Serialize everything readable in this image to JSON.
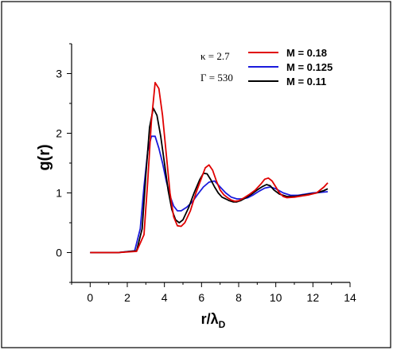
{
  "chart_data": {
    "type": "line",
    "title": "",
    "xlabel": "r/λ",
    "xlabel_main": "r/λ",
    "xlabel_sub": "D",
    "ylabel": "g(r)",
    "xlim": [
      -1,
      14
    ],
    "ylim": [
      -0.5,
      3.5
    ],
    "xticks": [
      0,
      2,
      4,
      6,
      8,
      10,
      12,
      14
    ],
    "yticks": [
      0,
      1,
      2,
      3
    ],
    "grid": false,
    "legend_position": "top-right",
    "annotations": [
      "κ = 2.7",
      "Γ = 530"
    ],
    "colors": {
      "M018": "#e00000",
      "M0125": "#1a1adc",
      "M011": "#000000",
      "frame": "#000000"
    },
    "series": [
      {
        "name": "M = 0.18",
        "color": "#e00000",
        "x": [
          0,
          1.5,
          2.5,
          2.9,
          3.1,
          3.3,
          3.5,
          3.7,
          3.9,
          4.1,
          4.3,
          4.5,
          4.7,
          4.9,
          5.1,
          5.4,
          5.7,
          6.0,
          6.2,
          6.4,
          6.6,
          6.8,
          7.0,
          7.2,
          7.4,
          7.6,
          7.8,
          8.0,
          8.3,
          8.6,
          8.9,
          9.2,
          9.4,
          9.6,
          9.8,
          10.0,
          10.2,
          10.4,
          10.6,
          11.0,
          11.4,
          11.8,
          12.2,
          12.6,
          12.8
        ],
        "y": [
          0,
          0,
          0.02,
          0.3,
          1.2,
          2.2,
          2.85,
          2.75,
          2.3,
          1.65,
          1.0,
          0.6,
          0.45,
          0.44,
          0.5,
          0.7,
          1.0,
          1.25,
          1.42,
          1.47,
          1.38,
          1.2,
          1.05,
          0.97,
          0.92,
          0.88,
          0.86,
          0.87,
          0.92,
          0.98,
          1.05,
          1.15,
          1.23,
          1.25,
          1.2,
          1.1,
          1.0,
          0.94,
          0.92,
          0.93,
          0.95,
          0.97,
          1.0,
          1.1,
          1.17
        ]
      },
      {
        "name": "M = 0.125",
        "color": "#1a1adc",
        "x": [
          0,
          1.5,
          2.4,
          2.7,
          2.9,
          3.1,
          3.3,
          3.5,
          3.7,
          3.9,
          4.1,
          4.3,
          4.5,
          4.7,
          4.9,
          5.2,
          5.5,
          5.8,
          6.1,
          6.4,
          6.7,
          7.0,
          7.3,
          7.6,
          7.9,
          8.2,
          8.5,
          8.8,
          9.1,
          9.4,
          9.7,
          10.0,
          10.4,
          10.8,
          11.2,
          11.6,
          12.0,
          12.4,
          12.8
        ],
        "y": [
          0,
          0,
          0.03,
          0.4,
          1.1,
          1.7,
          1.95,
          1.95,
          1.75,
          1.5,
          1.2,
          0.95,
          0.78,
          0.7,
          0.7,
          0.76,
          0.85,
          0.98,
          1.1,
          1.18,
          1.2,
          1.1,
          1.0,
          0.93,
          0.9,
          0.9,
          0.92,
          0.97,
          1.03,
          1.08,
          1.1,
          1.07,
          1.0,
          0.96,
          0.96,
          0.98,
          1.0,
          1.01,
          1.02
        ]
      },
      {
        "name": "M = 0.11",
        "color": "#000000",
        "x": [
          0,
          1.5,
          2.5,
          2.8,
          3.0,
          3.2,
          3.4,
          3.6,
          3.8,
          4.0,
          4.2,
          4.4,
          4.6,
          4.8,
          5.0,
          5.3,
          5.6,
          5.9,
          6.1,
          6.3,
          6.5,
          6.7,
          6.9,
          7.1,
          7.3,
          7.5,
          7.7,
          7.9,
          8.1,
          8.4,
          8.7,
          9.0,
          9.3,
          9.5,
          9.7,
          9.9,
          10.2,
          10.6,
          11.0,
          11.4,
          11.8,
          12.2,
          12.6,
          12.8
        ],
        "y": [
          0,
          0,
          0.03,
          0.4,
          1.3,
          2.1,
          2.42,
          2.3,
          1.95,
          1.5,
          1.05,
          0.72,
          0.55,
          0.5,
          0.55,
          0.75,
          1.0,
          1.22,
          1.33,
          1.32,
          1.22,
          1.1,
          1.0,
          0.93,
          0.9,
          0.87,
          0.85,
          0.85,
          0.87,
          0.92,
          0.98,
          1.05,
          1.11,
          1.14,
          1.12,
          1.05,
          0.98,
          0.94,
          0.94,
          0.96,
          0.98,
          1.0,
          1.04,
          1.07
        ]
      }
    ]
  }
}
